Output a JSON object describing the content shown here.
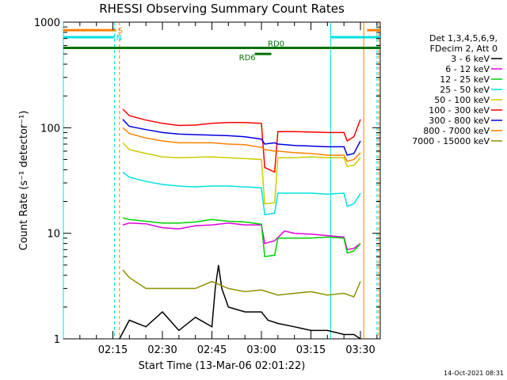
{
  "chart_data": {
    "type": "line",
    "title": "RHESSI Observing Summary Count Rates",
    "xlabel": "Start Time (13-Mar-06 02:01:22)",
    "ylabel": "Count Rate (s⁻¹ detector⁻¹)",
    "y_scale": "log",
    "ylim": [
      1,
      1000
    ],
    "y_ticks": [
      {
        "value": 1,
        "label": "1"
      },
      {
        "value": 10,
        "label": "10"
      },
      {
        "value": 100,
        "label": "100"
      },
      {
        "value": 1000,
        "label": "1000"
      }
    ],
    "xlim_minutes": [
      0,
      96
    ],
    "x_ticks": [
      {
        "minute": 15,
        "label": "02:15"
      },
      {
        "minute": 30,
        "label": "02:30"
      },
      {
        "minute": 45,
        "label": "02:45"
      },
      {
        "minute": 60,
        "label": "03:00"
      },
      {
        "minute": 75,
        "label": "03:15"
      },
      {
        "minute": 90,
        "label": "03:30"
      }
    ],
    "legend": {
      "header": [
        "Det 1,3,4,5,6,9,",
        "FDecim 2, Att 0"
      ],
      "placement": "right"
    },
    "series": [
      {
        "name": "3 - 6 keV",
        "color": "#000000",
        "points": [
          [
            17,
            1
          ],
          [
            20,
            1.5
          ],
          [
            25,
            1.3
          ],
          [
            30,
            1.8
          ],
          [
            35,
            1.2
          ],
          [
            40,
            1.6
          ],
          [
            45,
            1.3
          ],
          [
            46,
            3
          ],
          [
            47,
            5
          ],
          [
            48,
            3
          ],
          [
            50,
            2
          ],
          [
            55,
            1.8
          ],
          [
            60,
            1.8
          ],
          [
            62,
            1.5
          ],
          [
            65,
            1.4
          ],
          [
            70,
            1.3
          ],
          [
            75,
            1.2
          ],
          [
            80,
            1.2
          ],
          [
            85,
            1.1
          ],
          [
            88,
            1.1
          ],
          [
            90,
            1
          ]
        ]
      },
      {
        "name": "6 - 12 keV",
        "color": "#e000e0",
        "points": [
          [
            18,
            12
          ],
          [
            20,
            12.5
          ],
          [
            25,
            12.3
          ],
          [
            30,
            11.3
          ],
          [
            35,
            11
          ],
          [
            40,
            11.8
          ],
          [
            45,
            12
          ],
          [
            50,
            12.5
          ],
          [
            55,
            12
          ],
          [
            60,
            12
          ],
          [
            61,
            8
          ],
          [
            64,
            8.5
          ],
          [
            67,
            10.5
          ],
          [
            70,
            10
          ],
          [
            75,
            9.8
          ],
          [
            80,
            9.5
          ],
          [
            85,
            9.2
          ],
          [
            86,
            7
          ],
          [
            88,
            7.2
          ],
          [
            90,
            8
          ]
        ]
      },
      {
        "name": "12 - 25 keV",
        "color": "#00d000",
        "points": [
          [
            18,
            14
          ],
          [
            20,
            13.5
          ],
          [
            25,
            13
          ],
          [
            30,
            12.5
          ],
          [
            35,
            12.5
          ],
          [
            40,
            12.8
          ],
          [
            45,
            13.5
          ],
          [
            50,
            13
          ],
          [
            55,
            12.8
          ],
          [
            60,
            12.2
          ],
          [
            61,
            6
          ],
          [
            64,
            6.2
          ],
          [
            65,
            9
          ],
          [
            70,
            9
          ],
          [
            75,
            9
          ],
          [
            80,
            9.2
          ],
          [
            85,
            9
          ],
          [
            86,
            6.5
          ],
          [
            88,
            6.8
          ],
          [
            90,
            8
          ]
        ]
      },
      {
        "name": "25 - 50 keV",
        "color": "#00e0e0",
        "points": [
          [
            18,
            38
          ],
          [
            20,
            34
          ],
          [
            25,
            31
          ],
          [
            30,
            29
          ],
          [
            35,
            28
          ],
          [
            40,
            27.5
          ],
          [
            45,
            28
          ],
          [
            50,
            28
          ],
          [
            55,
            27.5
          ],
          [
            60,
            27
          ],
          [
            61,
            15
          ],
          [
            64,
            15.5
          ],
          [
            65,
            24
          ],
          [
            70,
            24
          ],
          [
            75,
            24
          ],
          [
            80,
            23.5
          ],
          [
            85,
            24
          ],
          [
            86,
            18
          ],
          [
            88,
            19
          ],
          [
            90,
            24
          ]
        ]
      },
      {
        "name": "50 - 100 keV",
        "color": "#cccc00",
        "points": [
          [
            18,
            72
          ],
          [
            20,
            62
          ],
          [
            25,
            57
          ],
          [
            30,
            53
          ],
          [
            35,
            52
          ],
          [
            40,
            52.5
          ],
          [
            45,
            53
          ],
          [
            50,
            52
          ],
          [
            55,
            51
          ],
          [
            60,
            50
          ],
          [
            61,
            19
          ],
          [
            64,
            19.5
          ],
          [
            65,
            52
          ],
          [
            70,
            52
          ],
          [
            75,
            53
          ],
          [
            80,
            52
          ],
          [
            85,
            52
          ],
          [
            86,
            43
          ],
          [
            88,
            44
          ],
          [
            90,
            52
          ]
        ]
      },
      {
        "name": "100 - 300 keV",
        "color": "#ff0000",
        "points": [
          [
            18,
            150
          ],
          [
            20,
            130
          ],
          [
            25,
            118
          ],
          [
            30,
            110
          ],
          [
            35,
            105
          ],
          [
            40,
            106
          ],
          [
            45,
            110
          ],
          [
            50,
            112
          ],
          [
            55,
            112
          ],
          [
            60,
            110
          ],
          [
            61,
            42
          ],
          [
            64,
            38
          ],
          [
            65,
            92
          ],
          [
            70,
            92
          ],
          [
            75,
            91
          ],
          [
            80,
            90
          ],
          [
            85,
            90
          ],
          [
            86,
            75
          ],
          [
            88,
            82
          ],
          [
            90,
            120
          ]
        ]
      },
      {
        "name": "300 - 800 keV",
        "color": "#0000e0",
        "points": [
          [
            18,
            120
          ],
          [
            20,
            103
          ],
          [
            25,
            96
          ],
          [
            30,
            90
          ],
          [
            35,
            87
          ],
          [
            40,
            86
          ],
          [
            45,
            85
          ],
          [
            50,
            84
          ],
          [
            55,
            82
          ],
          [
            60,
            78
          ],
          [
            61,
            70
          ],
          [
            64,
            72
          ],
          [
            65,
            70
          ],
          [
            70,
            68
          ],
          [
            75,
            67
          ],
          [
            80,
            66
          ],
          [
            85,
            66
          ],
          [
            86,
            55
          ],
          [
            88,
            57
          ],
          [
            90,
            75
          ]
        ]
      },
      {
        "name": "800 - 7000 keV",
        "color": "#ff8000",
        "points": [
          [
            18,
            100
          ],
          [
            20,
            88
          ],
          [
            25,
            80
          ],
          [
            30,
            75
          ],
          [
            35,
            72
          ],
          [
            40,
            72
          ],
          [
            45,
            72
          ],
          [
            50,
            70
          ],
          [
            55,
            69
          ],
          [
            60,
            65
          ],
          [
            61,
            62
          ],
          [
            64,
            60
          ],
          [
            65,
            60
          ],
          [
            70,
            58
          ],
          [
            75,
            57
          ],
          [
            80,
            55
          ],
          [
            85,
            55
          ],
          [
            86,
            48
          ],
          [
            88,
            50
          ],
          [
            90,
            58
          ]
        ]
      },
      {
        "name": "7000 - 15000 keV",
        "color": "#909000",
        "points": [
          [
            18,
            4.5
          ],
          [
            20,
            3.8
          ],
          [
            25,
            3
          ],
          [
            30,
            3
          ],
          [
            35,
            3
          ],
          [
            40,
            3
          ],
          [
            45,
            3.5
          ],
          [
            50,
            3
          ],
          [
            55,
            2.8
          ],
          [
            60,
            2.9
          ],
          [
            65,
            2.6
          ],
          [
            70,
            2.7
          ],
          [
            75,
            2.8
          ],
          [
            80,
            2.6
          ],
          [
            85,
            2.7
          ],
          [
            88,
            2.5
          ],
          [
            90,
            3.5
          ]
        ]
      }
    ],
    "annotations": {
      "vertical_lines": [
        {
          "minute": 0,
          "color": "#00e0e0",
          "style": "solid"
        },
        {
          "minute": 15.5,
          "color": "#00e0e0",
          "style": "dashed"
        },
        {
          "minute": 17,
          "color": "#ff8000",
          "style": "dashed"
        },
        {
          "minute": 81,
          "color": "#00e0e0",
          "style": "solid"
        },
        {
          "minute": 91,
          "color": "#ff8000",
          "style": "solid"
        },
        {
          "minute": 95,
          "color": "#00e0e0",
          "style": "dashed"
        },
        {
          "minute": 95.5,
          "color": "#ff8000",
          "style": "dashed"
        }
      ],
      "horizontal_bars": [
        {
          "label": "S",
          "color": "#ff8000",
          "x_minutes": [
            0,
            16
          ],
          "y_value": 840
        },
        {
          "label": "N",
          "color": "#00e0e0",
          "x_minutes": [
            0,
            15.5
          ],
          "y_value": 720
        },
        {
          "label": "",
          "color": "#ff8000",
          "x_minutes": [
            92,
            96
          ],
          "y_value": 840
        },
        {
          "label": "",
          "color": "#00e0e0",
          "x_minutes": [
            81,
            96
          ],
          "y_value": 720
        },
        {
          "label": "RD0",
          "color": "#007000",
          "x_minutes": [
            0,
            96
          ],
          "y_value": 570
        },
        {
          "label": "RD6",
          "color": "#007000",
          "x_minutes": [
            58,
            63
          ],
          "y_value": 500
        }
      ]
    }
  },
  "footer": {
    "date_stamp": "14-Oct-2021 08:31"
  }
}
